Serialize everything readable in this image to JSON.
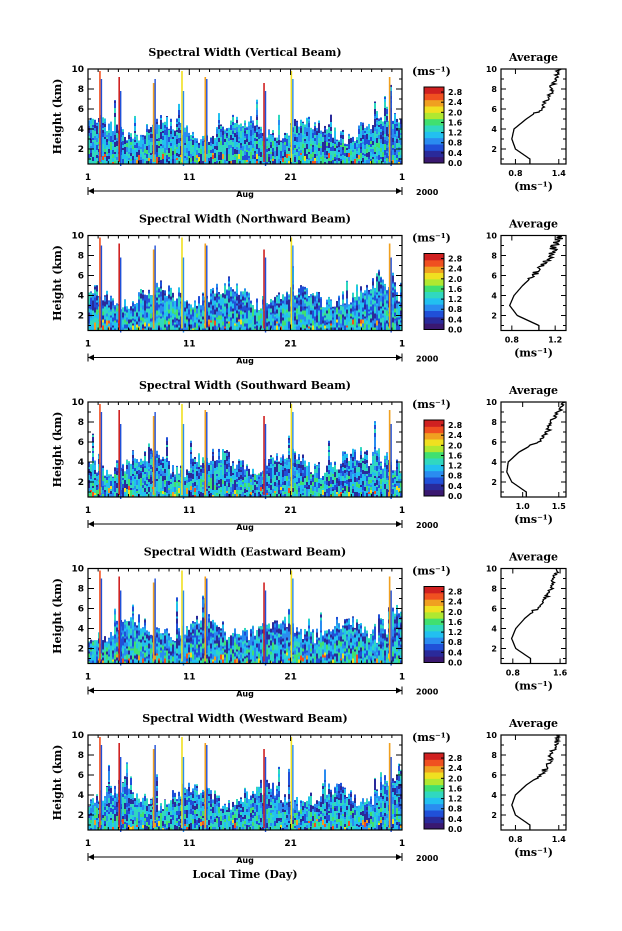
{
  "figure": {
    "xlabel": "Local Time (Day)",
    "month_label": "Aug",
    "year_label": "2000",
    "avg_title": "Average",
    "unit_label": "(ms⁻¹)",
    "ylabel": "Height (km)",
    "avg_xlabel": "(ms⁻¹)"
  },
  "colors": {
    "scale": [
      "#3a1870",
      "#2a2a9a",
      "#2050d8",
      "#2a8cf0",
      "#22c0f0",
      "#30d8c0",
      "#40e070",
      "#b0e830",
      "#f0e020",
      "#f0a020",
      "#f05020",
      "#d02020"
    ],
    "frame": "#000000"
  },
  "chart_data": [
    {
      "type": "heatmap",
      "title": "Spectral Width (Vertical Beam)",
      "x_ticks": [
        "1",
        "11",
        "21",
        "1"
      ],
      "xlim": [
        1,
        32
      ],
      "y_ticks": [
        "2",
        "4",
        "6",
        "8",
        "10"
      ],
      "ylim": [
        0.5,
        10
      ],
      "colorbar_ticks": [
        "0.0",
        "0.4",
        "0.8",
        "1.2",
        "1.6",
        "2.0",
        "2.4",
        "2.8"
      ],
      "colorbar_range": [
        0,
        3.0
      ],
      "average": {
        "title": "Average",
        "x_ticks": [
          "0.8",
          "1.4"
        ],
        "xlim": [
          0.6,
          1.5
        ],
        "height_km": [
          1,
          2,
          3,
          4,
          5,
          6,
          7,
          8,
          9,
          10
        ],
        "width_ms": [
          1.0,
          0.8,
          0.75,
          0.78,
          0.95,
          1.15,
          1.25,
          1.3,
          1.35,
          1.4
        ]
      }
    },
    {
      "type": "heatmap",
      "title": "Spectral Width (Northward Beam)",
      "x_ticks": [
        "1",
        "11",
        "21",
        "1"
      ],
      "xlim": [
        1,
        32
      ],
      "y_ticks": [
        "2",
        "4",
        "6",
        "8",
        "10"
      ],
      "ylim": [
        0.5,
        10
      ],
      "colorbar_ticks": [
        "0.0",
        "0.4",
        "0.8",
        "1.2",
        "1.6",
        "2.0",
        "2.4",
        "2.8"
      ],
      "colorbar_range": [
        0,
        3.0
      ],
      "average": {
        "title": "Average",
        "x_ticks": [
          "0.8",
          "1.2"
        ],
        "xlim": [
          0.7,
          1.3
        ],
        "height_km": [
          1,
          2,
          3,
          4,
          5,
          6,
          7,
          8,
          9,
          10
        ],
        "width_ms": [
          1.05,
          0.85,
          0.78,
          0.82,
          0.9,
          1.0,
          1.1,
          1.15,
          1.2,
          1.25
        ]
      }
    },
    {
      "type": "heatmap",
      "title": "Spectral Width (Southward Beam)",
      "x_ticks": [
        "1",
        "11",
        "21",
        "1"
      ],
      "xlim": [
        1,
        32
      ],
      "y_ticks": [
        "2",
        "4",
        "6",
        "8",
        "10"
      ],
      "ylim": [
        0.5,
        10
      ],
      "colorbar_ticks": [
        "0.0",
        "0.4",
        "0.8",
        "1.2",
        "1.6",
        "2.0",
        "2.4",
        "2.8"
      ],
      "colorbar_range": [
        0,
        3.0
      ],
      "average": {
        "title": "Average",
        "x_ticks": [
          "1.0",
          "1.5"
        ],
        "xlim": [
          0.7,
          1.6
        ],
        "height_km": [
          1,
          2,
          3,
          4,
          5,
          6,
          7,
          8,
          9,
          10
        ],
        "width_ms": [
          1.05,
          0.85,
          0.78,
          0.8,
          0.95,
          1.2,
          1.35,
          1.4,
          1.5,
          1.55
        ]
      }
    },
    {
      "type": "heatmap",
      "title": "Spectral Width (Eastward Beam)",
      "x_ticks": [
        "1",
        "11",
        "21",
        "1"
      ],
      "xlim": [
        1,
        32
      ],
      "y_ticks": [
        "2",
        "4",
        "6",
        "8",
        "10"
      ],
      "ylim": [
        0.5,
        10
      ],
      "colorbar_ticks": [
        "0.0",
        "0.4",
        "0.8",
        "1.2",
        "1.6",
        "2.0",
        "2.4",
        "2.8"
      ],
      "colorbar_range": [
        0,
        3.0
      ],
      "average": {
        "title": "Average",
        "x_ticks": [
          "0.8",
          "1.6"
        ],
        "xlim": [
          0.6,
          1.7
        ],
        "height_km": [
          1,
          2,
          3,
          4,
          5,
          6,
          7,
          8,
          9,
          10
        ],
        "width_ms": [
          1.1,
          0.85,
          0.78,
          0.85,
          1.0,
          1.2,
          1.35,
          1.45,
          1.5,
          1.55
        ]
      }
    },
    {
      "type": "heatmap",
      "title": "Spectral Width (Westward Beam)",
      "x_ticks": [
        "1",
        "11",
        "21",
        "1"
      ],
      "xlim": [
        1,
        32
      ],
      "y_ticks": [
        "2",
        "4",
        "6",
        "8",
        "10"
      ],
      "ylim": [
        0.5,
        10
      ],
      "colorbar_ticks": [
        "0.0",
        "0.4",
        "0.8",
        "1.2",
        "1.6",
        "2.0",
        "2.4",
        "2.8"
      ],
      "colorbar_range": [
        0,
        3.0
      ],
      "average": {
        "title": "Average",
        "x_ticks": [
          "0.8",
          "1.4"
        ],
        "xlim": [
          0.6,
          1.5
        ],
        "height_km": [
          1,
          2,
          3,
          4,
          5,
          6,
          7,
          8,
          9,
          10
        ],
        "width_ms": [
          1.0,
          0.8,
          0.75,
          0.8,
          0.95,
          1.15,
          1.25,
          1.3,
          1.35,
          1.4
        ]
      }
    }
  ]
}
